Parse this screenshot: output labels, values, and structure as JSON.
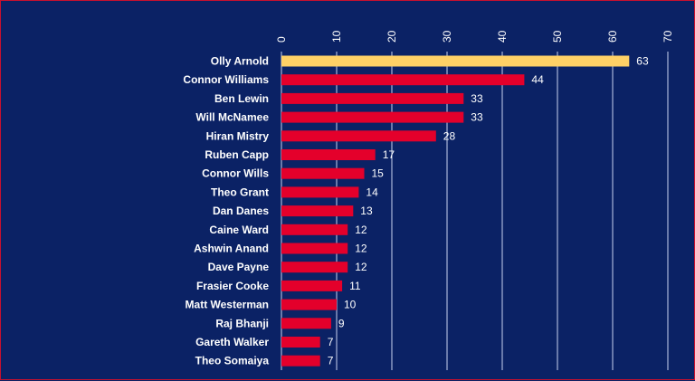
{
  "chart_data": {
    "type": "bar",
    "orientation": "horizontal",
    "title": "",
    "xlabel": "",
    "ylabel": "",
    "xlim": [
      0,
      70
    ],
    "x_ticks": [
      0,
      10,
      20,
      30,
      40,
      50,
      60,
      70
    ],
    "x_axis_position": "top",
    "grid": true,
    "legend": "none",
    "categories": [
      "Olly Arnold",
      "Connor Williams",
      "Ben Lewin",
      "Will McNamee",
      "Hiran Mistry",
      "Ruben Capp",
      "Connor Wills",
      "Theo Grant",
      "Dan Danes",
      "Caine Ward",
      "Ashwin Anand",
      "Dave Payne",
      "Frasier Cooke",
      "Matt Westerman",
      "Raj Bhanji",
      "Gareth Walker",
      "Theo Somaiya"
    ],
    "values": [
      63,
      44,
      33,
      33,
      28,
      17,
      15,
      14,
      13,
      12,
      12,
      12,
      11,
      10,
      9,
      7,
      7
    ],
    "highlight_index": 0,
    "colors": {
      "background": "#0b2265",
      "bar": "#e4002b",
      "highlight_bar": "#ffd166",
      "text": "#ffffff",
      "grid": "#c9d3ee",
      "border": "#c8102e"
    }
  }
}
